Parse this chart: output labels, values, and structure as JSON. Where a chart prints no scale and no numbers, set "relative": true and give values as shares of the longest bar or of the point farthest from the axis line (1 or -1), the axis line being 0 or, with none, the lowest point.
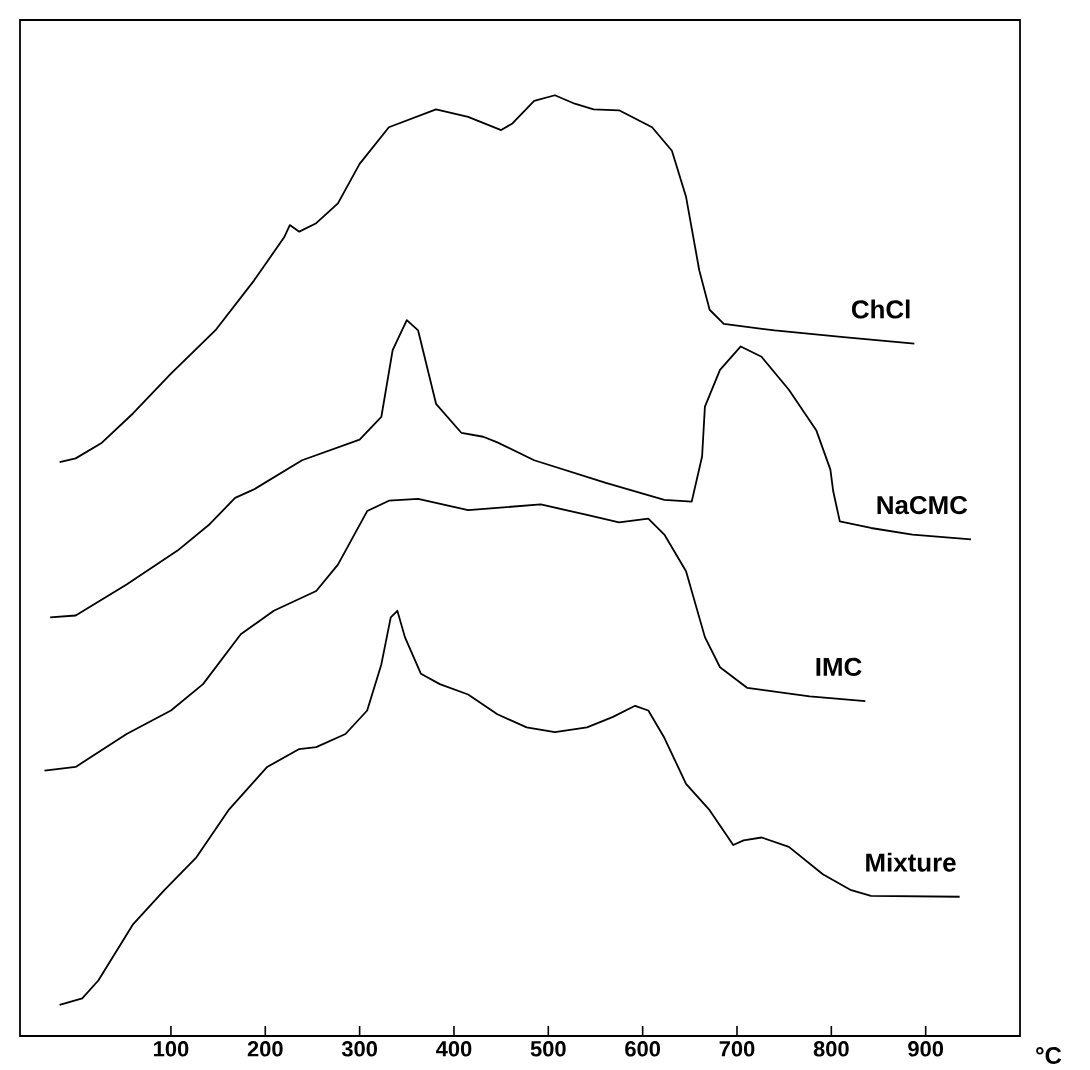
{
  "chart_data": {
    "type": "line",
    "relative": true,
    "xlabel": "°C",
    "xlim": [
      -60,
      1000
    ],
    "xticks": [
      100,
      200,
      300,
      400,
      500,
      600,
      700,
      800,
      900
    ],
    "grid": false,
    "legend": false,
    "marker": "none",
    "line_style": "solid",
    "series": [
      {
        "name": "ChCl",
        "color": "#000000",
        "x": [
          -18,
          -1,
          26,
          60,
          100,
          147,
          188,
          220,
          226,
          236,
          254,
          277,
          300,
          331,
          381,
          415,
          450,
          462,
          485,
          507,
          528,
          548,
          575,
          610,
          631,
          646,
          660,
          671,
          686,
          740,
          813,
          888
        ],
        "values": [
          0.61,
          0.614,
          0.63,
          0.662,
          0.704,
          0.75,
          0.803,
          0.849,
          0.862,
          0.855,
          0.864,
          0.885,
          0.927,
          0.966,
          0.985,
          0.977,
          0.963,
          0.97,
          0.994,
          1.0,
          0.991,
          0.985,
          0.984,
          0.966,
          0.941,
          0.892,
          0.814,
          0.772,
          0.757,
          0.75,
          0.743,
          0.736
        ]
      },
      {
        "name": "NaCMC",
        "color": "#000000",
        "x": [
          -28,
          -1,
          53,
          107,
          141,
          168,
          188,
          239,
          300,
          323,
          335,
          350,
          362,
          381,
          408,
          431,
          446,
          485,
          561,
          623,
          652,
          663,
          666,
          682,
          704,
          726,
          755,
          784,
          799,
          802,
          809,
          842,
          886,
          948
        ],
        "values": [
          0.445,
          0.447,
          0.48,
          0.516,
          0.544,
          0.572,
          0.581,
          0.612,
          0.634,
          0.658,
          0.729,
          0.761,
          0.75,
          0.672,
          0.641,
          0.637,
          0.631,
          0.612,
          0.588,
          0.57,
          0.568,
          0.616,
          0.669,
          0.708,
          0.733,
          0.722,
          0.687,
          0.644,
          0.602,
          0.579,
          0.547,
          0.54,
          0.533,
          0.528
        ]
      },
      {
        "name": "IMC",
        "color": "#000000",
        "x": [
          -34,
          -1,
          53,
          100,
          134,
          174,
          209,
          254,
          277,
          308,
          331,
          362,
          415,
          492,
          541,
          575,
          606,
          623,
          646,
          666,
          682,
          711,
          777,
          836
        ],
        "values": [
          0.282,
          0.286,
          0.321,
          0.346,
          0.374,
          0.427,
          0.452,
          0.473,
          0.501,
          0.558,
          0.569,
          0.571,
          0.559,
          0.565,
          0.554,
          0.546,
          0.55,
          0.533,
          0.494,
          0.424,
          0.392,
          0.37,
          0.361,
          0.356
        ]
      },
      {
        "name": "Mixture",
        "color": "#000000",
        "x": [
          -18,
          6,
          23,
          60,
          93,
          127,
          161,
          202,
          236,
          254,
          285,
          308,
          323,
          333,
          340,
          348,
          365,
          385,
          415,
          446,
          477,
          507,
          541,
          568,
          592,
          606,
          623,
          646,
          671,
          696,
          707,
          726,
          755,
          791,
          821,
          842,
          936
        ],
        "values": [
          0.033,
          0.04,
          0.059,
          0.119,
          0.155,
          0.19,
          0.24,
          0.286,
          0.305,
          0.307,
          0.321,
          0.346,
          0.395,
          0.445,
          0.452,
          0.424,
          0.385,
          0.374,
          0.363,
          0.342,
          0.328,
          0.323,
          0.328,
          0.339,
          0.351,
          0.346,
          0.317,
          0.268,
          0.24,
          0.203,
          0.208,
          0.211,
          0.201,
          0.172,
          0.155,
          0.149,
          0.148
        ]
      }
    ]
  }
}
